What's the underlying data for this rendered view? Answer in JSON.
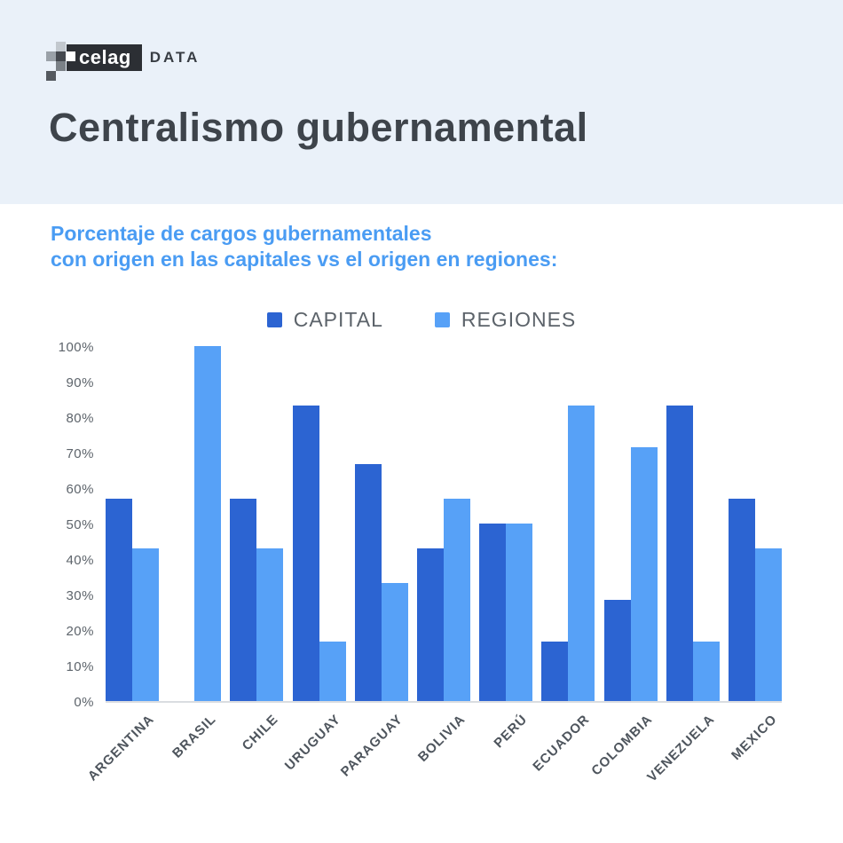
{
  "logo": {
    "brand": "celag",
    "suffix": "DATA",
    "box_color": "#2c2f34",
    "mosaic": [
      {
        "r": 0,
        "c": 1,
        "color": "#c2c8ce"
      },
      {
        "r": 1,
        "c": 0,
        "color": "#9aa1a8"
      },
      {
        "r": 1,
        "c": 1,
        "color": "#45494f"
      },
      {
        "r": 1,
        "c": 2,
        "color": "#ffffff"
      },
      {
        "r": 2,
        "c": 1,
        "color": "#7b8187"
      },
      {
        "r": 3,
        "c": 0,
        "color": "#54595f"
      }
    ]
  },
  "title": "Centralismo gubernamental",
  "subtitle_line1": "Porcentaje de cargos gubernamentales",
  "subtitle_line2": "con origen en las capitales vs el origen en regiones:",
  "colors": {
    "header_bg": "#eaf1f9",
    "title_text": "#3e444b",
    "subtitle_text": "#4a9cf3",
    "capital_bar": "#2c64d2",
    "regiones_bar": "#57a1f7",
    "axis_text": "#5d646b",
    "baseline": "#dadde1"
  },
  "chart_data": {
    "type": "bar",
    "title": "Porcentaje de cargos gubernamentales con origen en las capitales vs el origen en regiones",
    "categories": [
      "ARGENTINA",
      "BRASIL",
      "CHILE",
      "URUGUAY",
      "PARAGUAY",
      "BOLIVIA",
      "PERÚ",
      "ECUADOR",
      "COLOMBIA",
      "VENEZUELA",
      "MEXICO"
    ],
    "series": [
      {
        "name": "CAPITAL",
        "color": "#2c64d2",
        "values": [
          57.1,
          0,
          57.1,
          83.3,
          66.7,
          42.9,
          50,
          16.7,
          28.6,
          83.3,
          57.1
        ]
      },
      {
        "name": "REGIONES",
        "color": "#57a1f7",
        "values": [
          42.9,
          100,
          42.9,
          16.7,
          33.3,
          57.1,
          50,
          83.3,
          71.4,
          16.7,
          42.9
        ]
      }
    ],
    "ylabel_ticks": [
      "100%",
      "90%",
      "80%",
      "70%",
      "60%",
      "50%",
      "40%",
      "30%",
      "20%",
      "10%",
      "0%"
    ],
    "ylim": [
      0,
      100
    ],
    "xlabel": "",
    "ylabel": "",
    "grid": false,
    "legend_position": "top",
    "legend": [
      "CAPITAL",
      "REGIONES"
    ]
  }
}
